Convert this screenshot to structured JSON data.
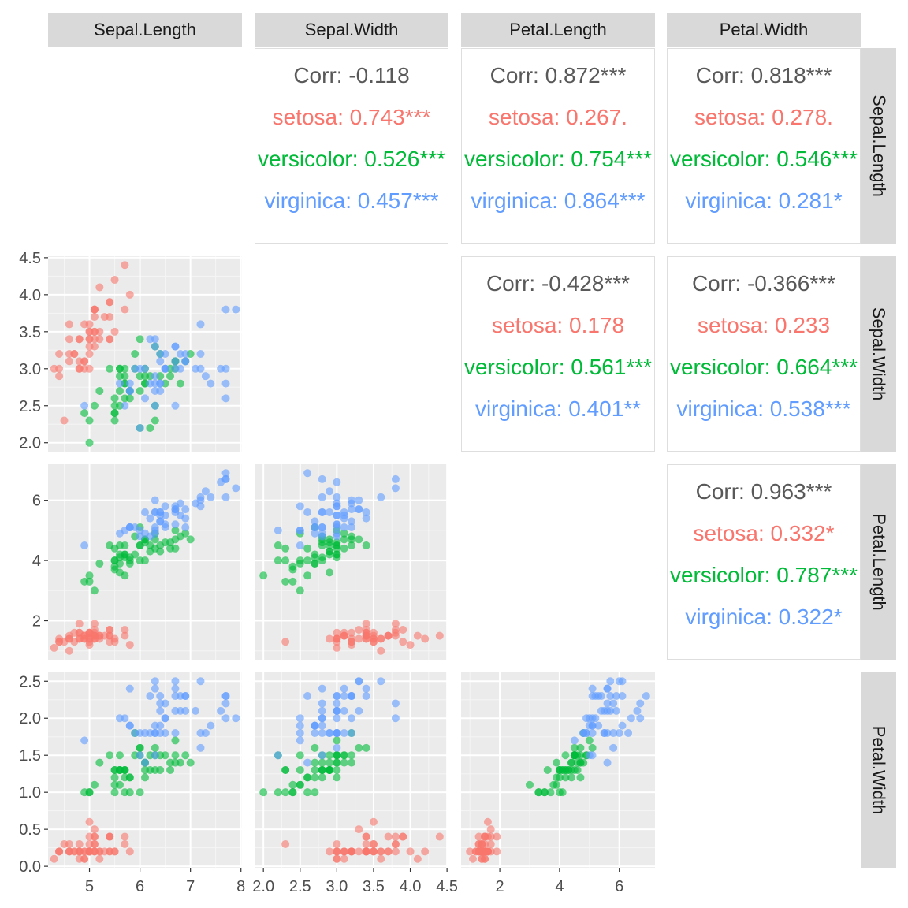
{
  "chart_data": {
    "type": "scatter",
    "variables": [
      "Sepal.Length",
      "Sepal.Width",
      "Petal.Length",
      "Petal.Width"
    ],
    "groups": [
      {
        "name": "setosa",
        "color": "#F8766D"
      },
      {
        "name": "versicolor",
        "color": "#00BA38"
      },
      {
        "name": "virginica",
        "color": "#619CFF"
      }
    ],
    "overall_color": "#595959",
    "axes": {
      "Sepal.Length": {
        "range": [
          4.18,
          8.02
        ],
        "ticks": [
          5,
          6,
          7,
          8
        ],
        "tick_labels": [
          "5",
          "6",
          "7",
          "8"
        ]
      },
      "Sepal.Width": {
        "range": [
          1.88,
          4.52
        ],
        "ticks": [
          2.0,
          2.5,
          3.0,
          3.5,
          4.0,
          4.5
        ],
        "tick_labels": [
          "2.0",
          "2.5",
          "3.0",
          "3.5",
          "4.0",
          "4.5"
        ]
      },
      "Petal.Length": {
        "range": [
          0.705,
          7.195
        ],
        "ticks": [
          2,
          4,
          6
        ],
        "tick_labels": [
          "2",
          "4",
          "6"
        ]
      },
      "Petal.Width": {
        "range": [
          -0.02,
          2.62
        ],
        "ticks": [
          0.0,
          0.5,
          1.0,
          1.5,
          2.0,
          2.5
        ],
        "tick_labels": [
          "0.0",
          "0.5",
          "1.0",
          "1.5",
          "2.0",
          "2.5"
        ]
      }
    },
    "correlations": {
      "0-1": {
        "corr": "Corr: -0.118",
        "groups": [
          "setosa: 0.743***",
          "versicolor: 0.526***",
          "virginica: 0.457***"
        ]
      },
      "0-2": {
        "corr": "Corr: 0.872***",
        "groups": [
          "setosa: 0.267.",
          "versicolor: 0.754***",
          "virginica: 0.864***"
        ]
      },
      "0-3": {
        "corr": "Corr: 0.818***",
        "groups": [
          "setosa: 0.278.",
          "versicolor: 0.546***",
          "virginica: 0.281*"
        ]
      },
      "1-2": {
        "corr": "Corr: -0.428***",
        "groups": [
          "setosa: 0.178",
          "versicolor: 0.561***",
          "virginica: 0.401**"
        ]
      },
      "1-3": {
        "corr": "Corr: -0.366***",
        "groups": [
          "setosa: 0.233",
          "versicolor: 0.664***",
          "virginica: 0.538***"
        ]
      },
      "2-3": {
        "corr": "Corr: 0.963***",
        "groups": [
          "setosa: 0.332*",
          "versicolor: 0.787***",
          "virginica: 0.322*"
        ]
      }
    },
    "points": [
      [
        5.1,
        3.5,
        1.4,
        0.2,
        "setosa"
      ],
      [
        4.9,
        3.0,
        1.4,
        0.2,
        "setosa"
      ],
      [
        4.7,
        3.2,
        1.3,
        0.2,
        "setosa"
      ],
      [
        4.6,
        3.1,
        1.5,
        0.2,
        "setosa"
      ],
      [
        5.0,
        3.6,
        1.4,
        0.2,
        "setosa"
      ],
      [
        5.4,
        3.9,
        1.7,
        0.4,
        "setosa"
      ],
      [
        4.6,
        3.4,
        1.4,
        0.3,
        "setosa"
      ],
      [
        5.0,
        3.4,
        1.5,
        0.2,
        "setosa"
      ],
      [
        4.4,
        2.9,
        1.4,
        0.2,
        "setosa"
      ],
      [
        4.9,
        3.1,
        1.5,
        0.1,
        "setosa"
      ],
      [
        5.4,
        3.7,
        1.5,
        0.2,
        "setosa"
      ],
      [
        4.8,
        3.4,
        1.6,
        0.2,
        "setosa"
      ],
      [
        4.8,
        3.0,
        1.4,
        0.1,
        "setosa"
      ],
      [
        4.3,
        3.0,
        1.1,
        0.1,
        "setosa"
      ],
      [
        5.8,
        4.0,
        1.2,
        0.2,
        "setosa"
      ],
      [
        5.7,
        4.4,
        1.5,
        0.4,
        "setosa"
      ],
      [
        5.4,
        3.9,
        1.3,
        0.4,
        "setosa"
      ],
      [
        5.1,
        3.5,
        1.4,
        0.3,
        "setosa"
      ],
      [
        5.7,
        3.8,
        1.7,
        0.3,
        "setosa"
      ],
      [
        5.1,
        3.8,
        1.5,
        0.3,
        "setosa"
      ],
      [
        5.4,
        3.4,
        1.7,
        0.2,
        "setosa"
      ],
      [
        5.1,
        3.7,
        1.5,
        0.4,
        "setosa"
      ],
      [
        4.6,
        3.6,
        1.0,
        0.2,
        "setosa"
      ],
      [
        5.1,
        3.3,
        1.7,
        0.5,
        "setosa"
      ],
      [
        4.8,
        3.4,
        1.9,
        0.2,
        "setosa"
      ],
      [
        5.0,
        3.0,
        1.6,
        0.2,
        "setosa"
      ],
      [
        5.0,
        3.4,
        1.6,
        0.4,
        "setosa"
      ],
      [
        5.2,
        3.5,
        1.5,
        0.2,
        "setosa"
      ],
      [
        5.2,
        3.4,
        1.4,
        0.2,
        "setosa"
      ],
      [
        4.7,
        3.2,
        1.6,
        0.2,
        "setosa"
      ],
      [
        4.8,
        3.1,
        1.6,
        0.2,
        "setosa"
      ],
      [
        5.4,
        3.4,
        1.5,
        0.4,
        "setosa"
      ],
      [
        5.2,
        4.1,
        1.5,
        0.1,
        "setosa"
      ],
      [
        5.5,
        4.2,
        1.4,
        0.2,
        "setosa"
      ],
      [
        4.9,
        3.1,
        1.5,
        0.2,
        "setosa"
      ],
      [
        5.0,
        3.2,
        1.2,
        0.2,
        "setosa"
      ],
      [
        5.5,
        3.5,
        1.3,
        0.2,
        "setosa"
      ],
      [
        4.9,
        3.6,
        1.4,
        0.1,
        "setosa"
      ],
      [
        4.4,
        3.0,
        1.3,
        0.2,
        "setosa"
      ],
      [
        5.1,
        3.4,
        1.5,
        0.2,
        "setosa"
      ],
      [
        5.0,
        3.5,
        1.3,
        0.3,
        "setosa"
      ],
      [
        4.5,
        2.3,
        1.3,
        0.3,
        "setosa"
      ],
      [
        4.4,
        3.2,
        1.3,
        0.2,
        "setosa"
      ],
      [
        5.0,
        3.5,
        1.6,
        0.6,
        "setosa"
      ],
      [
        5.1,
        3.8,
        1.9,
        0.4,
        "setosa"
      ],
      [
        4.8,
        3.0,
        1.4,
        0.3,
        "setosa"
      ],
      [
        5.1,
        3.8,
        1.6,
        0.2,
        "setosa"
      ],
      [
        4.6,
        3.2,
        1.4,
        0.2,
        "setosa"
      ],
      [
        5.3,
        3.7,
        1.5,
        0.2,
        "setosa"
      ],
      [
        5.0,
        3.3,
        1.4,
        0.2,
        "setosa"
      ],
      [
        7.0,
        3.2,
        4.7,
        1.4,
        "versicolor"
      ],
      [
        6.4,
        3.2,
        4.5,
        1.5,
        "versicolor"
      ],
      [
        6.9,
        3.1,
        4.9,
        1.5,
        "versicolor"
      ],
      [
        5.5,
        2.3,
        4.0,
        1.3,
        "versicolor"
      ],
      [
        6.5,
        2.8,
        4.6,
        1.5,
        "versicolor"
      ],
      [
        5.7,
        2.8,
        4.5,
        1.3,
        "versicolor"
      ],
      [
        6.3,
        3.3,
        4.7,
        1.6,
        "versicolor"
      ],
      [
        4.9,
        2.4,
        3.3,
        1.0,
        "versicolor"
      ],
      [
        6.6,
        2.9,
        4.6,
        1.3,
        "versicolor"
      ],
      [
        5.2,
        2.7,
        3.9,
        1.4,
        "versicolor"
      ],
      [
        5.0,
        2.0,
        3.5,
        1.0,
        "versicolor"
      ],
      [
        5.9,
        3.0,
        4.2,
        1.5,
        "versicolor"
      ],
      [
        6.0,
        2.2,
        4.0,
        1.0,
        "versicolor"
      ],
      [
        6.1,
        2.9,
        4.7,
        1.4,
        "versicolor"
      ],
      [
        5.6,
        2.9,
        3.6,
        1.3,
        "versicolor"
      ],
      [
        6.7,
        3.1,
        4.4,
        1.4,
        "versicolor"
      ],
      [
        5.6,
        3.0,
        4.5,
        1.5,
        "versicolor"
      ],
      [
        5.8,
        2.7,
        4.1,
        1.0,
        "versicolor"
      ],
      [
        6.2,
        2.2,
        4.5,
        1.5,
        "versicolor"
      ],
      [
        5.6,
        2.5,
        3.9,
        1.1,
        "versicolor"
      ],
      [
        5.9,
        3.2,
        4.8,
        1.8,
        "versicolor"
      ],
      [
        6.1,
        2.8,
        4.0,
        1.3,
        "versicolor"
      ],
      [
        6.3,
        2.5,
        4.9,
        1.5,
        "versicolor"
      ],
      [
        6.1,
        2.8,
        4.7,
        1.2,
        "versicolor"
      ],
      [
        6.4,
        2.9,
        4.3,
        1.3,
        "versicolor"
      ],
      [
        6.6,
        3.0,
        4.4,
        1.4,
        "versicolor"
      ],
      [
        6.8,
        2.8,
        4.8,
        1.4,
        "versicolor"
      ],
      [
        6.7,
        3.0,
        5.0,
        1.7,
        "versicolor"
      ],
      [
        6.0,
        2.9,
        4.5,
        1.5,
        "versicolor"
      ],
      [
        5.7,
        2.6,
        3.5,
        1.0,
        "versicolor"
      ],
      [
        5.5,
        2.4,
        3.8,
        1.1,
        "versicolor"
      ],
      [
        5.5,
        2.4,
        3.7,
        1.0,
        "versicolor"
      ],
      [
        5.8,
        2.7,
        3.9,
        1.2,
        "versicolor"
      ],
      [
        6.0,
        2.7,
        5.1,
        1.6,
        "versicolor"
      ],
      [
        5.4,
        3.0,
        4.5,
        1.5,
        "versicolor"
      ],
      [
        6.0,
        3.4,
        4.5,
        1.6,
        "versicolor"
      ],
      [
        6.7,
        3.1,
        4.7,
        1.5,
        "versicolor"
      ],
      [
        6.3,
        2.3,
        4.4,
        1.3,
        "versicolor"
      ],
      [
        5.6,
        3.0,
        4.1,
        1.3,
        "versicolor"
      ],
      [
        5.5,
        2.5,
        4.0,
        1.3,
        "versicolor"
      ],
      [
        5.5,
        2.6,
        4.4,
        1.2,
        "versicolor"
      ],
      [
        6.1,
        3.0,
        4.6,
        1.4,
        "versicolor"
      ],
      [
        5.8,
        2.6,
        4.0,
        1.2,
        "versicolor"
      ],
      [
        5.0,
        2.3,
        3.3,
        1.0,
        "versicolor"
      ],
      [
        5.6,
        2.7,
        4.2,
        1.3,
        "versicolor"
      ],
      [
        5.7,
        3.0,
        4.2,
        1.2,
        "versicolor"
      ],
      [
        5.7,
        2.9,
        4.2,
        1.3,
        "versicolor"
      ],
      [
        6.2,
        2.9,
        4.3,
        1.3,
        "versicolor"
      ],
      [
        5.1,
        2.5,
        3.0,
        1.1,
        "versicolor"
      ],
      [
        5.7,
        2.8,
        4.1,
        1.3,
        "versicolor"
      ],
      [
        6.3,
        3.3,
        6.0,
        2.5,
        "virginica"
      ],
      [
        5.8,
        2.7,
        5.1,
        1.9,
        "virginica"
      ],
      [
        7.1,
        3.0,
        5.9,
        2.1,
        "virginica"
      ],
      [
        6.3,
        2.9,
        5.6,
        1.8,
        "virginica"
      ],
      [
        6.5,
        3.0,
        5.8,
        2.2,
        "virginica"
      ],
      [
        7.6,
        3.0,
        6.6,
        2.1,
        "virginica"
      ],
      [
        4.9,
        2.5,
        4.5,
        1.7,
        "virginica"
      ],
      [
        7.3,
        2.9,
        6.3,
        1.8,
        "virginica"
      ],
      [
        6.7,
        2.5,
        5.8,
        1.8,
        "virginica"
      ],
      [
        7.2,
        3.6,
        6.1,
        2.5,
        "virginica"
      ],
      [
        6.5,
        3.2,
        5.1,
        2.0,
        "virginica"
      ],
      [
        6.4,
        2.7,
        5.3,
        1.9,
        "virginica"
      ],
      [
        6.8,
        3.0,
        5.5,
        2.1,
        "virginica"
      ],
      [
        5.7,
        2.5,
        5.0,
        2.0,
        "virginica"
      ],
      [
        5.8,
        2.8,
        5.1,
        2.4,
        "virginica"
      ],
      [
        6.4,
        3.2,
        5.3,
        2.3,
        "virginica"
      ],
      [
        6.5,
        3.0,
        5.5,
        1.8,
        "virginica"
      ],
      [
        7.7,
        3.8,
        6.7,
        2.2,
        "virginica"
      ],
      [
        7.7,
        2.6,
        6.9,
        2.3,
        "virginica"
      ],
      [
        6.0,
        2.2,
        5.0,
        1.5,
        "virginica"
      ],
      [
        6.9,
        3.2,
        5.7,
        2.3,
        "virginica"
      ],
      [
        5.6,
        2.8,
        4.9,
        2.0,
        "virginica"
      ],
      [
        7.7,
        2.8,
        6.7,
        2.0,
        "virginica"
      ],
      [
        6.3,
        2.7,
        4.9,
        1.8,
        "virginica"
      ],
      [
        6.7,
        3.3,
        5.7,
        2.1,
        "virginica"
      ],
      [
        7.2,
        3.2,
        6.0,
        1.8,
        "virginica"
      ],
      [
        6.2,
        2.8,
        4.8,
        1.8,
        "virginica"
      ],
      [
        6.1,
        3.0,
        4.9,
        1.8,
        "virginica"
      ],
      [
        6.4,
        2.8,
        5.6,
        2.1,
        "virginica"
      ],
      [
        7.2,
        3.0,
        5.8,
        1.6,
        "virginica"
      ],
      [
        7.4,
        2.8,
        6.1,
        1.9,
        "virginica"
      ],
      [
        7.9,
        3.8,
        6.4,
        2.0,
        "virginica"
      ],
      [
        6.4,
        2.8,
        5.6,
        2.2,
        "virginica"
      ],
      [
        6.3,
        2.8,
        5.1,
        1.5,
        "virginica"
      ],
      [
        6.1,
        2.6,
        5.6,
        1.4,
        "virginica"
      ],
      [
        7.7,
        3.0,
        6.1,
        2.3,
        "virginica"
      ],
      [
        6.3,
        3.4,
        5.6,
        2.4,
        "virginica"
      ],
      [
        6.4,
        3.1,
        5.5,
        1.8,
        "virginica"
      ],
      [
        6.0,
        3.0,
        4.8,
        1.8,
        "virginica"
      ],
      [
        6.9,
        3.1,
        5.4,
        2.1,
        "virginica"
      ],
      [
        6.7,
        3.1,
        5.6,
        2.4,
        "virginica"
      ],
      [
        6.9,
        3.1,
        5.1,
        2.3,
        "virginica"
      ],
      [
        5.8,
        2.7,
        5.1,
        1.9,
        "virginica"
      ],
      [
        6.8,
        3.2,
        5.9,
        2.3,
        "virginica"
      ],
      [
        6.7,
        3.3,
        5.7,
        2.5,
        "virginica"
      ],
      [
        6.7,
        3.0,
        5.2,
        2.3,
        "virginica"
      ],
      [
        6.3,
        2.5,
        5.0,
        1.9,
        "virginica"
      ],
      [
        6.5,
        3.0,
        5.2,
        2.0,
        "virginica"
      ],
      [
        6.2,
        3.4,
        5.4,
        2.3,
        "virginica"
      ],
      [
        5.9,
        3.0,
        5.1,
        1.8,
        "virginica"
      ]
    ]
  }
}
